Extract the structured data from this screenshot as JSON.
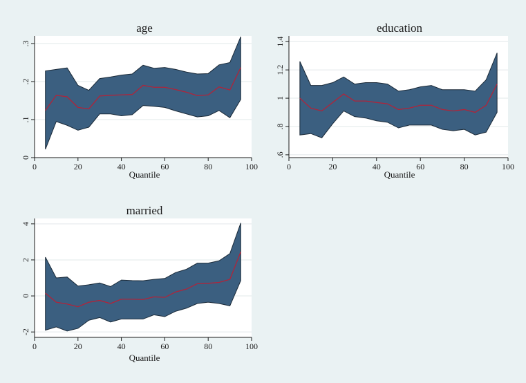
{
  "chart_data": [
    {
      "type": "area",
      "title": "age",
      "xlabel": "Quantile",
      "ylabel": "",
      "xlim": [
        0,
        100
      ],
      "ylim": [
        0,
        0.32
      ],
      "x_ticks": [
        "0",
        "20",
        "40",
        "60",
        "80",
        "100"
      ],
      "y_ticks": [
        "0",
        ".1",
        ".2",
        ".3"
      ],
      "grid": true,
      "x": [
        5,
        10,
        15,
        20,
        25,
        30,
        35,
        40,
        45,
        50,
        55,
        60,
        65,
        70,
        75,
        80,
        85,
        90,
        95
      ],
      "series": [
        {
          "role": "upper",
          "values": [
            0.228,
            0.232,
            0.236,
            0.19,
            0.177,
            0.208,
            0.212,
            0.217,
            0.22,
            0.243,
            0.235,
            0.237,
            0.232,
            0.225,
            0.22,
            0.221,
            0.244,
            0.25,
            0.318
          ]
        },
        {
          "role": "estimate",
          "values": [
            0.124,
            0.164,
            0.16,
            0.132,
            0.128,
            0.162,
            0.164,
            0.165,
            0.166,
            0.19,
            0.185,
            0.185,
            0.179,
            0.172,
            0.163,
            0.165,
            0.186,
            0.178,
            0.237
          ]
        },
        {
          "role": "lower",
          "values": [
            0.022,
            0.095,
            0.085,
            0.072,
            0.08,
            0.115,
            0.115,
            0.11,
            0.113,
            0.137,
            0.135,
            0.132,
            0.123,
            0.115,
            0.107,
            0.11,
            0.124,
            0.105,
            0.153
          ]
        }
      ]
    },
    {
      "type": "area",
      "title": "education",
      "xlabel": "Quantile",
      "ylabel": "",
      "xlim": [
        0,
        100
      ],
      "ylim": [
        0.58,
        1.44
      ],
      "x_ticks": [
        "0",
        "20",
        "40",
        "60",
        "80",
        "100"
      ],
      "y_ticks": [
        ".6",
        ".8",
        "1",
        "1.2",
        "1.4"
      ],
      "grid": true,
      "x": [
        5,
        10,
        15,
        20,
        25,
        30,
        35,
        40,
        45,
        50,
        55,
        60,
        65,
        70,
        75,
        80,
        85,
        90,
        95
      ],
      "series": [
        {
          "role": "upper",
          "values": [
            1.26,
            1.09,
            1.09,
            1.11,
            1.15,
            1.1,
            1.11,
            1.11,
            1.1,
            1.05,
            1.06,
            1.08,
            1.09,
            1.06,
            1.06,
            1.06,
            1.05,
            1.13,
            1.32
          ]
        },
        {
          "role": "estimate",
          "values": [
            1.0,
            0.93,
            0.91,
            0.97,
            1.03,
            0.98,
            0.98,
            0.97,
            0.96,
            0.92,
            0.93,
            0.95,
            0.95,
            0.92,
            0.91,
            0.92,
            0.9,
            0.95,
            1.1
          ]
        },
        {
          "role": "lower",
          "values": [
            0.74,
            0.75,
            0.72,
            0.82,
            0.91,
            0.87,
            0.86,
            0.84,
            0.83,
            0.79,
            0.81,
            0.81,
            0.81,
            0.78,
            0.77,
            0.78,
            0.74,
            0.76,
            0.9
          ]
        }
      ]
    },
    {
      "type": "area",
      "title": "married",
      "xlabel": "Quantile",
      "ylabel": "",
      "xlim": [
        0,
        100
      ],
      "ylim": [
        -2.3,
        4.3
      ],
      "x_ticks": [
        "0",
        "20",
        "40",
        "60",
        "80",
        "100"
      ],
      "y_ticks": [
        "-2",
        "0",
        "2",
        "4"
      ],
      "grid": true,
      "x": [
        5,
        10,
        15,
        20,
        25,
        30,
        35,
        40,
        45,
        50,
        55,
        60,
        65,
        70,
        75,
        80,
        85,
        90,
        95
      ],
      "series": [
        {
          "role": "upper",
          "values": [
            2.15,
            1.0,
            1.05,
            0.55,
            0.62,
            0.72,
            0.52,
            0.88,
            0.85,
            0.84,
            0.92,
            0.97,
            1.3,
            1.48,
            1.82,
            1.82,
            1.95,
            2.35,
            4.05
          ]
        },
        {
          "role": "estimate",
          "values": [
            0.15,
            -0.35,
            -0.45,
            -0.6,
            -0.35,
            -0.25,
            -0.42,
            -0.18,
            -0.18,
            -0.2,
            -0.05,
            -0.08,
            0.22,
            0.38,
            0.68,
            0.7,
            0.75,
            0.92,
            2.45
          ]
        },
        {
          "role": "lower",
          "values": [
            -1.9,
            -1.72,
            -1.95,
            -1.8,
            -1.35,
            -1.2,
            -1.45,
            -1.28,
            -1.28,
            -1.28,
            -1.05,
            -1.15,
            -0.85,
            -0.68,
            -0.42,
            -0.35,
            -0.42,
            -0.55,
            0.85
          ]
        }
      ]
    }
  ],
  "colors": {
    "background": "#eaf2f3",
    "plot_bg": "#ffffff",
    "grid": "#e2e8ea",
    "band_fill": "#3b5f80",
    "band_edge": "#1b2a38",
    "estimate_line": "#b0243a"
  }
}
